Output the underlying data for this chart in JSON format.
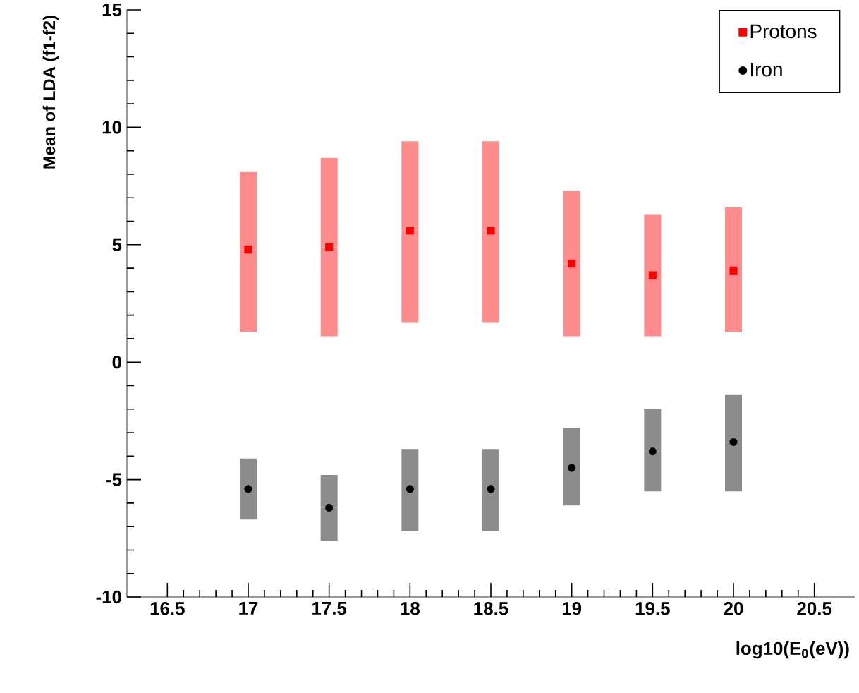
{
  "chart_data": {
    "type": "scatter",
    "xlabel": "log10(E$_{0}$(eV))",
    "ylabel": "Mean of LDA (f1-f2)",
    "xlim": [
      16.25,
      20.75
    ],
    "xticks": [
      16.5,
      17,
      17.5,
      18,
      18.5,
      19,
      19.5,
      20,
      20.5
    ],
    "ylim": [
      -10,
      15
    ],
    "yticks": [
      -10,
      -5,
      0,
      5,
      10,
      15
    ],
    "grid": false,
    "legend": "top right",
    "series": [
      {
        "name": "Protons",
        "color": "#ff0000",
        "marker": "square",
        "x": [
          17,
          17.5,
          18,
          18.5,
          19,
          19.5,
          20
        ],
        "values": [
          4.8,
          4.9,
          5.6,
          5.6,
          4.2,
          3.7,
          3.9
        ],
        "errors": [
          [
            1.3,
            8.1
          ],
          [
            1.1,
            8.7
          ],
          [
            1.7,
            9.4
          ],
          [
            1.7,
            9.4
          ],
          [
            1.1,
            7.3
          ],
          [
            1.1,
            6.3
          ],
          [
            1.3,
            6.6
          ]
        ]
      },
      {
        "name": "Iron",
        "color": "#000000",
        "marker": "circle",
        "x": [
          17,
          17.5,
          18,
          18.5,
          19,
          19.5,
          20
        ],
        "values": [
          -5.4,
          -6.2,
          -5.4,
          -5.4,
          -4.5,
          -3.8,
          -3.4
        ],
        "errors": [
          [
            -6.7,
            -4.1
          ],
          [
            -7.6,
            -4.8
          ],
          [
            -7.2,
            -3.7
          ],
          [
            -7.2,
            -3.7
          ],
          [
            -6.1,
            -2.8
          ],
          [
            -5.5,
            -2.0
          ],
          [
            -5.5,
            -1.4
          ]
        ]
      }
    ]
  }
}
